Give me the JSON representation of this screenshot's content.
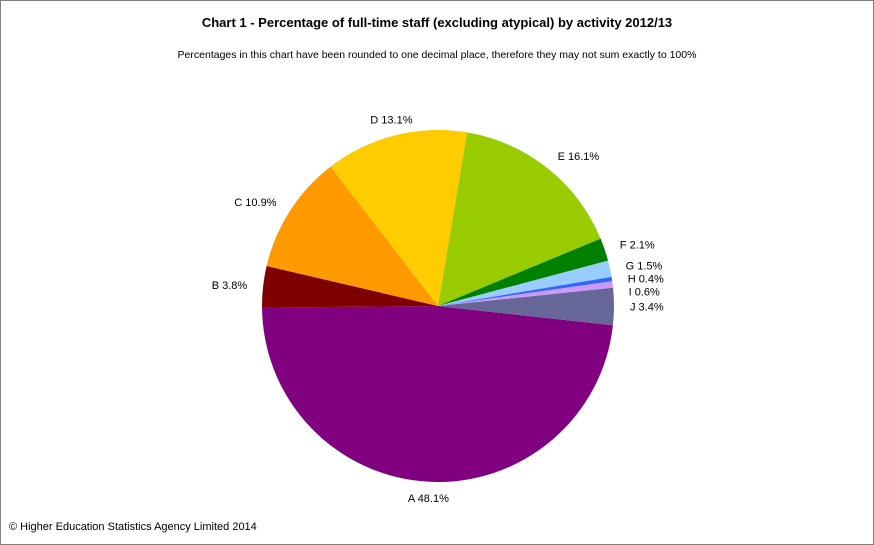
{
  "chart_data": {
    "type": "pie",
    "title": "Chart 1 - Percentage of full-time staff (excluding atypical) by activity 2012/13",
    "subtitle": "Percentages in this chart have been rounded to one decimal place, therefore they may not sum exactly to 100%",
    "slices": [
      {
        "label": "A 48.1%",
        "category": "A",
        "value": 48.1,
        "color": "#800080"
      },
      {
        "label": "B 3.8%",
        "category": "B",
        "value": 3.8,
        "color": "#800000"
      },
      {
        "label": "C 10.9%",
        "category": "C",
        "value": 10.9,
        "color": "#ff9900"
      },
      {
        "label": "D 13.1%",
        "category": "D",
        "value": 13.1,
        "color": "#ffcc00"
      },
      {
        "label": "E 16.1%",
        "category": "E",
        "value": 16.1,
        "color": "#99cc00"
      },
      {
        "label": "F 2.1%",
        "category": "F",
        "value": 2.1,
        "color": "#008000"
      },
      {
        "label": "G 1.5%",
        "category": "G",
        "value": 1.5,
        "color": "#99ccff"
      },
      {
        "label": "H 0.4%",
        "category": "H",
        "value": 0.4,
        "color": "#3366ff"
      },
      {
        "label": "I 0.6%",
        "category": "I",
        "value": 0.6,
        "color": "#cc99ff"
      },
      {
        "label": "J 3.4%",
        "category": "J",
        "value": 3.4,
        "color": "#666699"
      }
    ]
  },
  "footer": "© Higher Education Statistics Agency Limited 2014"
}
